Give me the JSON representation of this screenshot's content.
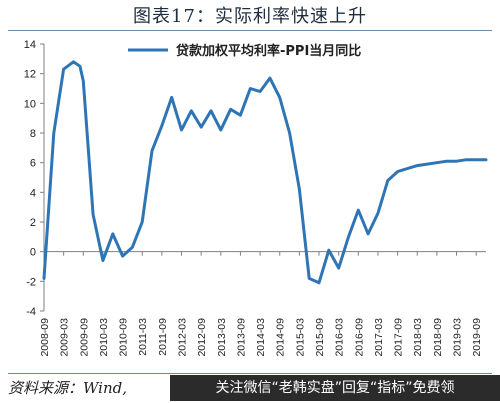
{
  "title": "图表17：实际利率快速上升",
  "source": "资料来源：Wind,",
  "watermark": "关注微信“老韩实盘”回复“指标”免费领",
  "chart_data": {
    "type": "line",
    "title": "图表17：实际利率快速上升",
    "xlabel": "",
    "ylabel": "",
    "ylim": [
      -4,
      14
    ],
    "yticks": [
      -4,
      -2,
      0,
      2,
      4,
      6,
      8,
      10,
      12,
      14
    ],
    "grid": false,
    "legend": "top-left",
    "x_tick_labels": [
      "2008-09",
      "2009-03",
      "2009-09",
      "2010-03",
      "2010-09",
      "2011-03",
      "2011-09",
      "2012-03",
      "2012-09",
      "2013-03",
      "2013-09",
      "2014-03",
      "2014-09",
      "2015-03",
      "2015-09",
      "2016-03",
      "2016-09",
      "2017-03",
      "2017-09",
      "2018-03",
      "2018-09",
      "2019-03",
      "2019-09"
    ],
    "x_range": [
      "2008-09",
      "2019-12"
    ],
    "series": [
      {
        "name": "贷款加权平均利率-PPI当月同比",
        "color": "#2e75b6",
        "x": [
          "2008-09",
          "2008-12",
          "2009-03",
          "2009-06",
          "2009-08",
          "2009-09",
          "2009-12",
          "2010-03",
          "2010-06",
          "2010-09",
          "2010-12",
          "2011-03",
          "2011-06",
          "2011-09",
          "2011-12",
          "2012-03",
          "2012-06",
          "2012-09",
          "2012-12",
          "2013-03",
          "2013-06",
          "2013-09",
          "2013-12",
          "2014-03",
          "2014-06",
          "2014-09",
          "2014-12",
          "2015-03",
          "2015-06",
          "2015-09",
          "2015-12",
          "2016-03",
          "2016-06",
          "2016-09",
          "2016-12",
          "2017-03",
          "2017-06",
          "2017-09",
          "2017-12",
          "2018-03",
          "2018-06",
          "2018-09",
          "2018-12",
          "2019-03",
          "2019-06",
          "2019-09",
          "2019-12"
        ],
        "y": [
          -1.8,
          8.0,
          12.3,
          12.8,
          12.5,
          11.5,
          2.5,
          -0.6,
          1.2,
          -0.3,
          0.3,
          2.0,
          6.8,
          8.5,
          10.4,
          8.2,
          9.5,
          8.4,
          9.5,
          8.2,
          9.6,
          9.2,
          11.0,
          10.8,
          11.7,
          10.4,
          8.0,
          4.2,
          -1.8,
          -2.1,
          0.1,
          -1.1,
          1.0,
          2.8,
          1.2,
          2.6,
          4.8,
          5.4,
          5.6,
          5.8,
          5.9,
          6.0,
          6.1,
          6.1,
          6.2,
          6.2,
          6.2
        ]
      }
    ]
  }
}
